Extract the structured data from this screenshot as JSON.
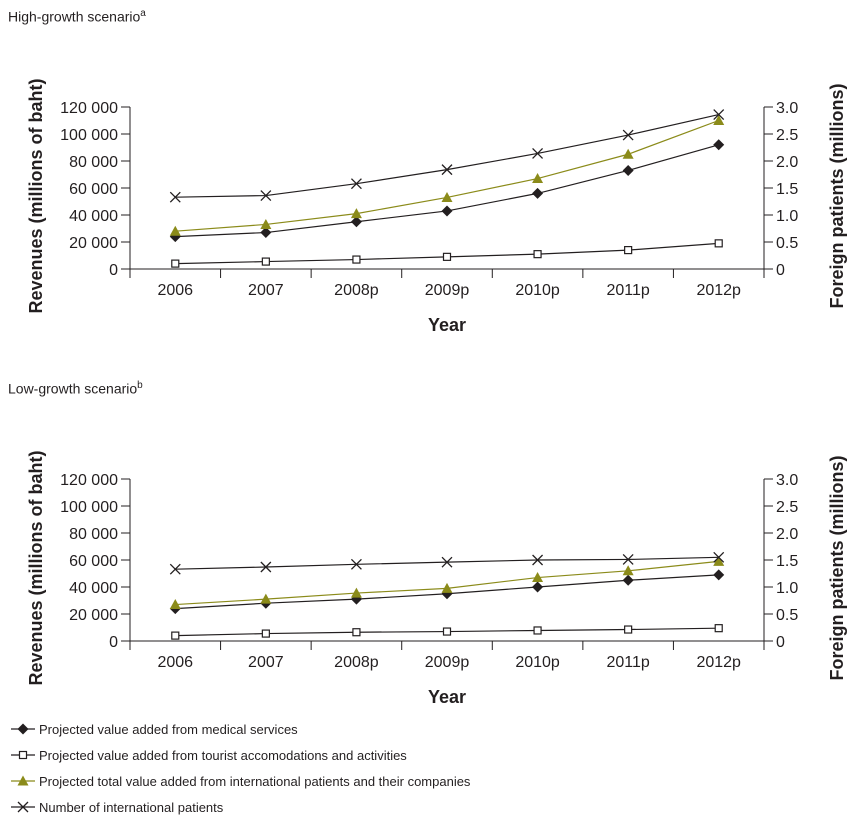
{
  "chart_data": [
    {
      "type": "line",
      "subtitle": "High-growth scenario",
      "subtitle_note": "a",
      "xlabel": "Year",
      "ylabel": "Revenues (millions of baht)",
      "ylabel_right": "Foreign patients (millions)",
      "categories": [
        "2006",
        "2007",
        "2008p",
        "2009p",
        "2010p",
        "2011p",
        "2012p"
      ],
      "ylim": [
        0,
        120000
      ],
      "ylim_right": [
        0,
        3.0
      ],
      "yticks": [
        "0",
        "20 000",
        "40 000",
        "60 000",
        "80 000",
        "100 000",
        "120 000"
      ],
      "yticks_right": [
        "0",
        "0.5",
        "1.0",
        "1.5",
        "2.0",
        "2.5",
        "3.0"
      ],
      "series": [
        {
          "name": "Projected value added from medical services",
          "axis": "left",
          "marker": "diamond",
          "color": "#231f20",
          "values": [
            24000,
            27000,
            35000,
            43000,
            56000,
            73000,
            92000
          ]
        },
        {
          "name": "Projected value added from tourist accomodations and activities",
          "axis": "left",
          "marker": "square-open",
          "color": "#231f20",
          "values": [
            4000,
            5500,
            7000,
            9000,
            11000,
            14000,
            19000
          ]
        },
        {
          "name": "Projected total value added from international patients and their companies",
          "axis": "left",
          "marker": "triangle",
          "color": "#8b8b1a",
          "values": [
            28000,
            33000,
            41000,
            53000,
            67000,
            85000,
            110000
          ]
        },
        {
          "name": "Number of international patients",
          "axis": "right",
          "marker": "x",
          "color": "#231f20",
          "values": [
            1.33,
            1.36,
            1.58,
            1.84,
            2.14,
            2.48,
            2.86
          ]
        }
      ]
    },
    {
      "type": "line",
      "subtitle": "Low-growth scenario",
      "subtitle_note": "b",
      "xlabel": "Year",
      "ylabel": "Revenues (millions of baht)",
      "ylabel_right": "Foreign patients (millions)",
      "categories": [
        "2006",
        "2007",
        "2008p",
        "2009p",
        "2010p",
        "2011p",
        "2012p"
      ],
      "ylim": [
        0,
        120000
      ],
      "ylim_right": [
        0,
        3.0
      ],
      "yticks": [
        "0",
        "20 000",
        "40 000",
        "60 000",
        "80 000",
        "100 000",
        "120 000"
      ],
      "yticks_right": [
        "0",
        "0.5",
        "1.0",
        "1.5",
        "2.0",
        "2.5",
        "3.0"
      ],
      "series": [
        {
          "name": "Projected value added from medical services",
          "axis": "left",
          "marker": "diamond",
          "color": "#231f20",
          "values": [
            24000,
            28000,
            31000,
            35000,
            40000,
            45000,
            49000
          ]
        },
        {
          "name": "Projected value added from tourist accomodations and activities",
          "axis": "left",
          "marker": "square-open",
          "color": "#231f20",
          "values": [
            4000,
            5500,
            6500,
            7000,
            7800,
            8500,
            9500
          ]
        },
        {
          "name": "Projected total value added from international patients and their companies",
          "axis": "left",
          "marker": "triangle",
          "color": "#8b8b1a",
          "values": [
            27000,
            31000,
            35500,
            39000,
            47000,
            52000,
            59000
          ]
        },
        {
          "name": "Number of international patients",
          "axis": "right",
          "marker": "x",
          "color": "#231f20",
          "values": [
            1.33,
            1.37,
            1.42,
            1.46,
            1.5,
            1.51,
            1.55
          ]
        }
      ]
    }
  ],
  "legend": [
    {
      "label": "Projected value added from medical services",
      "marker": "diamond",
      "color": "#231f20"
    },
    {
      "label": "Projected value added from tourist accomodations and activities",
      "marker": "square-open",
      "color": "#231f20"
    },
    {
      "label": "Projected total value added from international patients and their companies",
      "marker": "triangle",
      "color": "#8b8b1a"
    },
    {
      "label": "Number of international patients",
      "marker": "x",
      "color": "#231f20"
    }
  ]
}
